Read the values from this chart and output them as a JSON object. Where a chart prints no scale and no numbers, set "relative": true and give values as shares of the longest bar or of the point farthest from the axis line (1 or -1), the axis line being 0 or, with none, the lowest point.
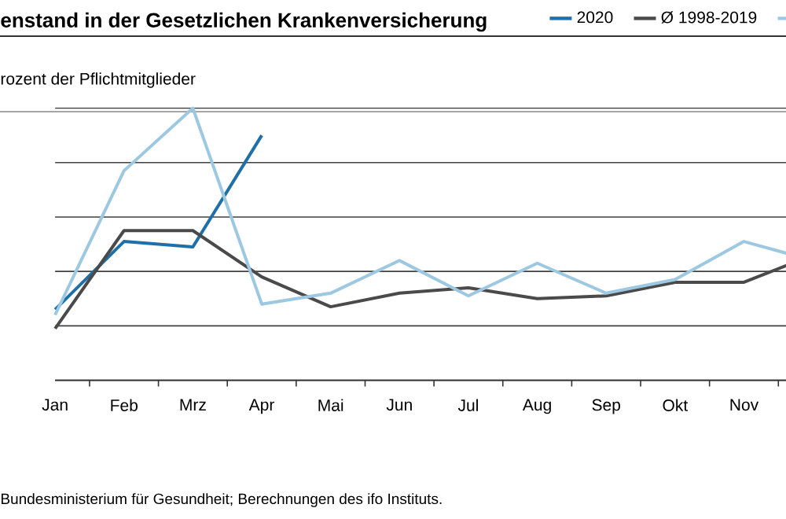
{
  "chart_data": {
    "type": "line",
    "title": "enstand in der Gesetzlichen Krankenversicherung",
    "subtitle": "rozent der Pflichtmitglieder",
    "annotations": [
      "Bundesministerium für Gesundheit; Berechnungen des ifo Instituts."
    ],
    "relative": true,
    "grid": "y",
    "legend": "top right",
    "line_style": "solid",
    "marker": "none",
    "categories": [
      "Jan",
      "Feb",
      "Mrz",
      "Apr",
      "Mai",
      "Jun",
      "Jul",
      "Aug",
      "Sep",
      "Okt",
      "Nov",
      null
    ],
    "series": [
      {
        "name": "2020",
        "color": "#1f6fa8",
        "values": [
          0.26,
          0.51,
          0.49,
          0.9,
          null,
          null,
          null,
          null,
          null,
          null,
          null,
          null
        ]
      },
      {
        "name": "Ø 1998-2019",
        "color": "#4a4a4a",
        "values": [
          0.19,
          0.55,
          0.55,
          0.38,
          0.27,
          0.32,
          0.34,
          0.3,
          0.31,
          0.36,
          0.36,
          0.46
        ]
      },
      {
        "color": "#9cc8e2",
        "values": [
          0.24,
          0.77,
          1.0,
          0.28,
          0.32,
          0.44,
          0.31,
          0.43,
          0.32,
          0.37,
          0.51,
          0.44
        ]
      }
    ]
  }
}
